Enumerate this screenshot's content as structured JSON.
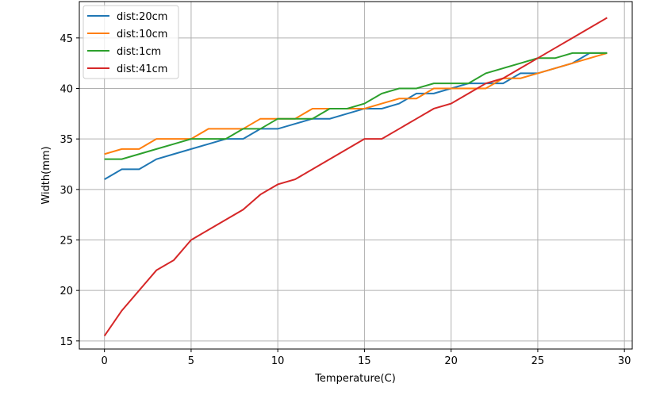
{
  "chart_data": {
    "type": "line",
    "title": "",
    "xlabel": "Temperature(C)",
    "ylabel": "Width(mm)",
    "xlim": [
      -1.45,
      30.45
    ],
    "ylim": [
      14.2,
      48.6
    ],
    "xticks": [
      0,
      5,
      10,
      15,
      20,
      25,
      30
    ],
    "yticks": [
      15,
      20,
      25,
      30,
      35,
      40,
      45
    ],
    "grid": true,
    "legend_position": "top-left",
    "x": [
      0,
      1,
      2,
      3,
      4,
      5,
      6,
      7,
      8,
      9,
      10,
      11,
      12,
      13,
      14,
      15,
      16,
      17,
      18,
      19,
      20,
      21,
      22,
      23,
      24,
      25,
      26,
      27,
      28,
      29
    ],
    "series": [
      {
        "name": "dist:20cm",
        "color": "#1f77b4",
        "values": [
          31,
          32,
          32,
          33,
          33.5,
          34,
          34.5,
          35,
          35,
          36,
          36,
          36.5,
          37,
          37,
          37.5,
          38,
          38,
          38.5,
          39.5,
          39.5,
          40,
          40.5,
          40.5,
          40.5,
          41.5,
          41.5,
          42,
          42.5,
          43.5,
          43.5
        ]
      },
      {
        "name": "dist:10cm",
        "color": "#ff7f0e",
        "values": [
          33.5,
          34,
          34,
          35,
          35,
          35,
          36,
          36,
          36,
          37,
          37,
          37,
          38,
          38,
          38,
          38,
          38.5,
          39,
          39,
          40,
          40,
          40,
          40,
          41,
          41,
          41.5,
          42,
          42.5,
          43,
          43.5
        ]
      },
      {
        "name": "dist:1cm",
        "color": "#2ca02c",
        "values": [
          33,
          33,
          33.5,
          34,
          34.5,
          35,
          35,
          35,
          36,
          36,
          37,
          37,
          37,
          38,
          38,
          38.5,
          39.5,
          40,
          40,
          40.5,
          40.5,
          40.5,
          41.5,
          42,
          42.5,
          43,
          43,
          43.5,
          43.5,
          43.5
        ]
      },
      {
        "name": "dist:41cm",
        "color": "#d62728",
        "values": [
          15.5,
          18,
          20,
          22,
          23,
          25,
          26,
          27,
          28,
          29.5,
          30.5,
          31,
          32,
          33,
          34,
          35,
          35,
          36,
          37,
          38,
          38.5,
          39.5,
          40.5,
          41,
          42,
          43,
          44,
          45,
          46,
          47
        ]
      }
    ]
  }
}
